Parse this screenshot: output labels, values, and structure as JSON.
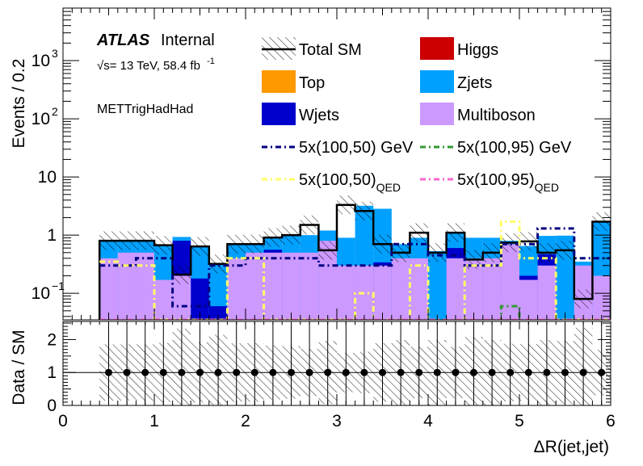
{
  "chart_data": {
    "type": "bar",
    "xlabel": "ΔR(jet,jet)",
    "top_ylabel": "Events / 0.2",
    "ratio_ylabel": "Data / SM",
    "x_range": [
      0,
      6
    ],
    "top_y_log": true,
    "top_y_range": [
      0.035,
      8000
    ],
    "ratio_y_range": [
      0,
      2.55
    ],
    "x_ticks": [
      "0",
      "1",
      "2",
      "3",
      "4",
      "5",
      "6"
    ],
    "top_y_ticks": [
      {
        "label": "10",
        "sup": "−1",
        "value": 0.1
      },
      {
        "label": "1",
        "sup": "",
        "value": 1
      },
      {
        "label": "10",
        "sup": "",
        "value": 10
      },
      {
        "label": "10",
        "sup": "2",
        "value": 100
      },
      {
        "label": "10",
        "sup": "3",
        "value": 1000
      }
    ],
    "ratio_y_ticks": [
      "0",
      "1",
      "2"
    ],
    "annotations": {
      "atlas": "ATLAS",
      "internal": "Internal",
      "energy_prefix": "√s= 13 TeV, 58.4 fb",
      "energy_sup": "-1",
      "region": "METTrigHadHad"
    },
    "legend": [
      {
        "key": "total_sm",
        "label": "Total SM",
        "sub": "",
        "color": "#000000",
        "style": "hatch-line"
      },
      {
        "key": "higgs",
        "label": "Higgs",
        "sub": "",
        "color": "#cc0000",
        "style": "fill"
      },
      {
        "key": "top",
        "label": "Top",
        "sub": "",
        "color": "#ff9900",
        "style": "fill"
      },
      {
        "key": "zjets",
        "label": "Zjets",
        "sub": "",
        "color": "#00a0ff",
        "style": "fill"
      },
      {
        "key": "wjets",
        "label": "Wjets",
        "sub": "",
        "color": "#0000cc",
        "style": "fill"
      },
      {
        "key": "multiboson",
        "label": "Multiboson",
        "sub": "",
        "color": "#cc99ff",
        "style": "fill"
      },
      {
        "key": "sig1",
        "label": "5x(100,50) GeV",
        "sub": "",
        "color": "#000080",
        "style": "dashdot"
      },
      {
        "key": "sig2",
        "label": "5x(100,95) GeV",
        "sub": "",
        "color": "#339933",
        "style": "dashdot"
      },
      {
        "key": "sig3",
        "label": "5x(100,50)",
        "sub": "QED",
        "color": "#ffff66",
        "style": "dashdot"
      },
      {
        "key": "sig4",
        "label": "5x(100,95)",
        "sub": "QED",
        "color": "#ff66cc",
        "style": "dashdot"
      }
    ],
    "bin_edges": [
      0.4,
      0.6,
      0.8,
      1.0,
      1.2,
      1.4,
      1.6,
      1.8,
      2.0,
      2.2,
      2.4,
      2.6,
      2.8,
      3.0,
      3.2,
      3.4,
      3.6,
      3.8,
      4.0,
      4.2,
      4.4,
      4.6,
      4.8,
      5.0,
      5.2,
      5.4,
      5.6,
      5.8,
      6.0
    ],
    "series": [
      {
        "name": "Multiboson",
        "color": "#cc99ff",
        "values": [
          0.4,
          0.5,
          0.5,
          0.17,
          0.2,
          0.03,
          0.03,
          0.4,
          0.5,
          0.5,
          0.5,
          0.5,
          0.8,
          0.3,
          0.3,
          0.3,
          0.4,
          0.4,
          0.03,
          0.4,
          0.4,
          0.4,
          0.7,
          0.17,
          0.3,
          0.03,
          0.3,
          0.2
        ]
      },
      {
        "name": "Wjets",
        "color": "#0000cc",
        "values": [
          0,
          0,
          0,
          0,
          0.6,
          0.15,
          0.03,
          0,
          0,
          0.06,
          0,
          0,
          0,
          0,
          0,
          0.04,
          0,
          0,
          0,
          0.2,
          0,
          0,
          0,
          0.03,
          0.17,
          0,
          0,
          0
        ]
      },
      {
        "name": "Zjets",
        "color": "#00a0ff",
        "values": [
          0.4,
          0.3,
          0.3,
          0.5,
          0.13,
          0.45,
          0.26,
          0.3,
          0.2,
          0.35,
          0.5,
          0.5,
          0.4,
          0.6,
          2.9,
          2.5,
          0.3,
          0.5,
          0.5,
          0.5,
          0.5,
          0.5,
          0.1,
          0.45,
          0.5,
          0.95,
          0.05,
          1.5
        ]
      }
    ],
    "total_sm": [
      0.8,
      0.8,
      0.8,
      0.67,
      0.21,
      0.64,
      0.32,
      0.7,
      0.7,
      0.91,
      1.0,
      1.5,
      0.55,
      3.3,
      2.6,
      0.7,
      0.5,
      1.1,
      0.5,
      1.1,
      0.38,
      0.5,
      0.74,
      0.78,
      0.5,
      0.55,
      0.08,
      1.7
    ],
    "signals": [
      {
        "name": "5x(100,50) GeV",
        "color": "#000080",
        "values": [
          0.3,
          0.3,
          0.4,
          0.4,
          0.06,
          0.06,
          0.3,
          0.3,
          0.4,
          0.4,
          0.4,
          0.4,
          0.3,
          0.3,
          0.3,
          0.3,
          0.7,
          0.7,
          0.45,
          0.45,
          0.3,
          0.3,
          0.7,
          0.7,
          1.3,
          1.3,
          0.4,
          0.4
        ]
      },
      {
        "name": "5x(100,95) GeV",
        "color": "#339933",
        "values": [
          0.035,
          0.035,
          0.035,
          0.035,
          0.035,
          0.035,
          0.035,
          0.035,
          0.035,
          0.035,
          0.035,
          0.035,
          0.035,
          0.035,
          0.035,
          0.035,
          0.035,
          0.035,
          0.035,
          0.035,
          0.035,
          0.035,
          0.06,
          0.035,
          0.035,
          0.035,
          0.035,
          0.035
        ]
      },
      {
        "name": "5x(100,50)QED",
        "color": "#ffff66",
        "values": [
          0.35,
          0.3,
          0.3,
          0.035,
          0.035,
          0.035,
          0.035,
          0.4,
          0.4,
          0.035,
          0.035,
          0.035,
          0.035,
          0.035,
          0.1,
          0.035,
          0.035,
          0.3,
          0.035,
          0.035,
          0.3,
          0.3,
          1.7,
          0.4,
          0.4,
          0.035,
          0.035,
          0.035
        ]
      },
      {
        "name": "5x(100,95)QED",
        "color": "#ff66cc",
        "values": [
          0.035,
          0.035,
          0.035,
          0.035,
          0.035,
          0.035,
          0.035,
          0.035,
          0.035,
          0.035,
          0.035,
          0.035,
          0.035,
          0.035,
          0.035,
          0.035,
          0.035,
          0.035,
          0.035,
          0.035,
          0.035,
          0.035,
          0.035,
          0.035,
          0.035,
          0.035,
          0.035,
          0.035
        ]
      }
    ],
    "ratio_points": {
      "x": [
        0.5,
        0.7,
        0.9,
        1.1,
        1.3,
        1.5,
        1.7,
        1.9,
        2.1,
        2.3,
        2.5,
        2.7,
        2.9,
        3.1,
        3.3,
        3.5,
        3.7,
        3.9,
        4.1,
        4.3,
        4.5,
        4.7,
        4.9,
        5.1,
        5.3,
        5.5,
        5.7,
        5.9
      ],
      "y": [
        1,
        1,
        1,
        1,
        1,
        1,
        1,
        1,
        1,
        1,
        1,
        1,
        1,
        1,
        1,
        1,
        1,
        1,
        1,
        1,
        1,
        1,
        1,
        1,
        1,
        1,
        1,
        1
      ]
    }
  }
}
